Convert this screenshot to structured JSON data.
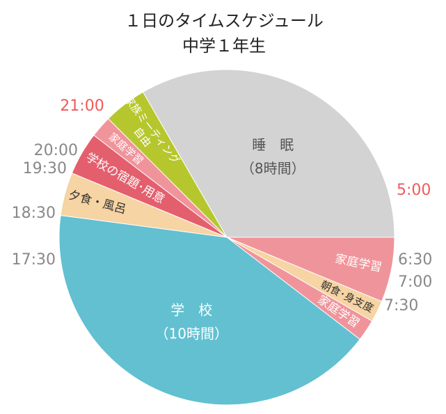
{
  "chart_data": {
    "type": "pie",
    "title": "１日のタイムスケジュール",
    "subtitle": "中学１年生",
    "unit": "hours (24h clock)",
    "slices": [
      {
        "name": "睡眠",
        "label_lines": [
          "睡　眠",
          "（8時間）"
        ],
        "start": "21:00",
        "end": "5:00",
        "start_h": 21.0,
        "end_h": 29.0,
        "color": "#d3d3d3",
        "text_color": "#555555"
      },
      {
        "name": "家庭学習",
        "label_lines": [
          "家庭学習"
        ],
        "start": "5:00",
        "end": "6:30",
        "start_h": 5.0,
        "end_h": 6.5,
        "color": "#f0949b",
        "text_color": "#ffffff"
      },
      {
        "name": "朝食･身支度",
        "label_lines": [
          "朝食･身支度"
        ],
        "start": "6:30",
        "end": "7:00",
        "start_h": 6.5,
        "end_h": 7.0,
        "color": "#f6d4a3",
        "text_color": "#333333"
      },
      {
        "name": "家庭学習",
        "label_lines": [
          "家庭学習"
        ],
        "start": "7:00",
        "end": "7:30",
        "start_h": 7.0,
        "end_h": 7.5,
        "color": "#f0949b",
        "text_color": "#ffffff"
      },
      {
        "name": "学校",
        "label_lines": [
          "学　校",
          "（10時間）"
        ],
        "start": "7:30",
        "end": "17:30",
        "start_h": 7.5,
        "end_h": 17.5,
        "color": "#62c0d1",
        "text_color": "#ffffff"
      },
      {
        "name": "夕食・風呂",
        "label_lines": [
          "夕食・風呂"
        ],
        "start": "17:30",
        "end": "18:30",
        "start_h": 17.5,
        "end_h": 18.5,
        "color": "#f6d4a3",
        "text_color": "#333333"
      },
      {
        "name": "学校の宿題･用意",
        "label_lines": [
          "学校の宿題･用意"
        ],
        "start": "18:30",
        "end": "19:30",
        "start_h": 18.5,
        "end_h": 19.5,
        "color": "#e45f6d",
        "text_color": "#ffffff"
      },
      {
        "name": "家庭学習",
        "label_lines": [
          "家庭学習"
        ],
        "start": "19:30",
        "end": "20:00",
        "start_h": 19.5,
        "end_h": 20.0,
        "color": "#f0949b",
        "text_color": "#ffffff"
      },
      {
        "name": "家族ミーティング",
        "label_lines": [
          "家族ミーティング",
          "自由"
        ],
        "start": "20:00",
        "end": "21:00",
        "start_h": 20.0,
        "end_h": 21.0,
        "color": "#b6c72e",
        "text_color": "#ffffff"
      }
    ],
    "time_labels": [
      {
        "text": "21:00",
        "color": "#f05a5a"
      },
      {
        "text": "5:00",
        "color": "#f05a5a"
      },
      {
        "text": "6:30",
        "color": "#888888"
      },
      {
        "text": "7:00",
        "color": "#888888"
      },
      {
        "text": "7:30",
        "color": "#888888"
      },
      {
        "text": "17:30",
        "color": "#888888"
      },
      {
        "text": "18:30",
        "color": "#888888"
      },
      {
        "text": "19:30",
        "color": "#888888"
      },
      {
        "text": "20:00",
        "color": "#888888"
      }
    ]
  }
}
